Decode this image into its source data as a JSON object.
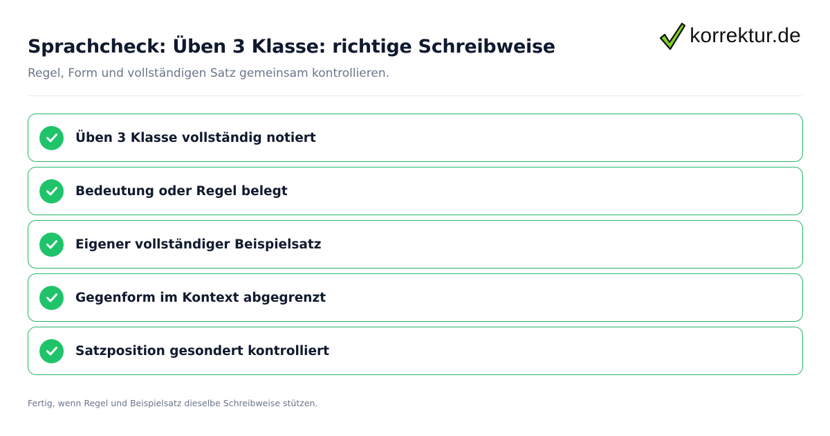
{
  "header": {
    "title": "Sprachcheck: Üben 3 Klasse: richtige Schreibweise",
    "subtitle": "Regel, Form und vollständigen Satz gemeinsam kontrollieren."
  },
  "logo": {
    "text": "korrektur.de",
    "icon": "checkmark-icon"
  },
  "checklist": {
    "items": [
      {
        "label": "Üben 3 Klasse vollständig notiert",
        "checked": true
      },
      {
        "label": "Bedeutung oder Regel belegt",
        "checked": true
      },
      {
        "label": "Eigener vollständiger Beispielsatz",
        "checked": true
      },
      {
        "label": "Gegenform im Kontext abgegrenzt",
        "checked": true
      },
      {
        "label": "Satzposition gesondert kontrolliert",
        "checked": true
      }
    ]
  },
  "footer": {
    "note": "Fertig, wenn Regel und Beispielsatz dieselbe Schreibweise stützen."
  },
  "colors": {
    "accent_green": "#1fc46a",
    "border_green": "#22b868",
    "title": "#101a2e",
    "muted": "#6a7689",
    "logo_check_fill": "#7ed321"
  }
}
